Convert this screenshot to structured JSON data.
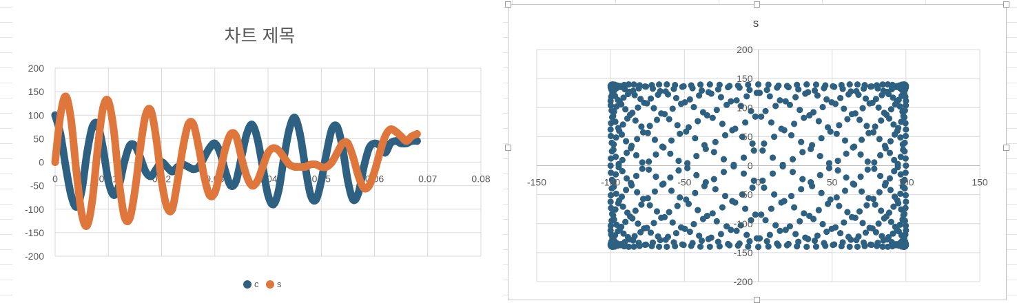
{
  "colors": {
    "series_c": "#2e6181",
    "series_s": "#df773d",
    "gridline": "#d9d9d9",
    "axis_text": "#595959",
    "sheet_grid": "#e3e3e3",
    "selection_border": "#c6c6c6"
  },
  "chart_data": [
    {
      "type": "scatter",
      "title": "차트 제목",
      "xlim": [
        0,
        0.08
      ],
      "ylim": [
        -200,
        200
      ],
      "x_ticks": [
        "0",
        "0.01",
        "0.02",
        "0.03",
        "0.04",
        "0.05",
        "0.06",
        "0.07",
        "0.08"
      ],
      "y_ticks": [
        "200",
        "150",
        "100",
        "50",
        "0",
        "-50",
        "-100",
        "-150",
        "-200"
      ],
      "grid": true,
      "legend_position": "bottom",
      "legend": [
        "c",
        "s"
      ],
      "series": [
        {
          "name": "c",
          "color": "#2e6181",
          "x": [
            0.0,
            0.001,
            0.002,
            0.003,
            0.004,
            0.005,
            0.006,
            0.007,
            0.008,
            0.009,
            0.01,
            0.011,
            0.012,
            0.013,
            0.014,
            0.015,
            0.016,
            0.017,
            0.018,
            0.019,
            0.02,
            0.021,
            0.022,
            0.023,
            0.024,
            0.025,
            0.026,
            0.027,
            0.028,
            0.029,
            0.03,
            0.031,
            0.032,
            0.033,
            0.034,
            0.035,
            0.036,
            0.037,
            0.038,
            0.039,
            0.04,
            0.041,
            0.042,
            0.043,
            0.044,
            0.045,
            0.046,
            0.047,
            0.048,
            0.049,
            0.05,
            0.051,
            0.052,
            0.053,
            0.054,
            0.055,
            0.056,
            0.057,
            0.058,
            0.059,
            0.06,
            0.061,
            0.062,
            0.063,
            0.064,
            0.065,
            0.066,
            0.067,
            0.068
          ],
          "y": [
            100,
            60,
            -10,
            -70,
            -95,
            -60,
            20,
            75,
            80,
            30,
            -40,
            -70,
            -50,
            0,
            35,
            35,
            10,
            -20,
            -30,
            -15,
            0,
            -10,
            -20,
            -10,
            -5,
            -10,
            -15,
            -10,
            10,
            30,
            40,
            20,
            -20,
            -50,
            -40,
            10,
            60,
            80,
            50,
            -10,
            -70,
            -90,
            -60,
            10,
            70,
            95,
            60,
            -10,
            -70,
            -80,
            -40,
            20,
            70,
            75,
            30,
            -40,
            -80,
            -65,
            -10,
            30,
            40,
            35,
            20,
            40,
            45,
            40,
            40,
            45,
            45
          ]
        },
        {
          "name": "s",
          "color": "#df773d",
          "x": [
            0.0,
            0.001,
            0.002,
            0.003,
            0.004,
            0.005,
            0.006,
            0.007,
            0.008,
            0.009,
            0.01,
            0.011,
            0.012,
            0.013,
            0.014,
            0.015,
            0.016,
            0.017,
            0.018,
            0.019,
            0.02,
            0.021,
            0.022,
            0.023,
            0.024,
            0.025,
            0.026,
            0.027,
            0.028,
            0.029,
            0.03,
            0.031,
            0.032,
            0.033,
            0.034,
            0.035,
            0.036,
            0.037,
            0.038,
            0.039,
            0.04,
            0.041,
            0.042,
            0.043,
            0.044,
            0.045,
            0.046,
            0.047,
            0.048,
            0.049,
            0.05,
            0.051,
            0.052,
            0.053,
            0.054,
            0.055,
            0.056,
            0.057,
            0.058,
            0.059,
            0.06,
            0.061,
            0.062,
            0.063,
            0.064,
            0.065,
            0.066,
            0.067,
            0.068
          ],
          "y": [
            0,
            100,
            140,
            90,
            -20,
            -110,
            -135,
            -80,
            30,
            115,
            130,
            70,
            -40,
            -115,
            -120,
            -60,
            30,
            100,
            110,
            50,
            -40,
            -95,
            -100,
            -40,
            30,
            80,
            80,
            30,
            -30,
            -70,
            -65,
            -20,
            30,
            60,
            55,
            10,
            -30,
            -50,
            -40,
            -10,
            20,
            30,
            25,
            10,
            -5,
            -10,
            -10,
            -10,
            -5,
            -5,
            -10,
            -10,
            0,
            20,
            40,
            40,
            10,
            -30,
            -55,
            -50,
            -20,
            20,
            55,
            70,
            65,
            55,
            45,
            55,
            60
          ]
        }
      ]
    },
    {
      "type": "scatter",
      "title": "s",
      "xlim": [
        -150,
        150
      ],
      "ylim": [
        -200,
        200
      ],
      "x_ticks": [
        "-150",
        "-100",
        "-50",
        "0",
        "50",
        "100",
        "150"
      ],
      "y_ticks": [
        "200",
        "150",
        "100",
        "50",
        "0",
        "-50",
        "-100",
        "-150",
        "-200"
      ],
      "grid": true,
      "legend_position": "none",
      "series": [
        {
          "name": "s",
          "color": "#2e6181",
          "curve": "lissajous",
          "x_amplitude": 100,
          "y_amplitude": 140,
          "ratio_c": 7,
          "ratio_s": 9,
          "points": 640
        }
      ]
    }
  ]
}
